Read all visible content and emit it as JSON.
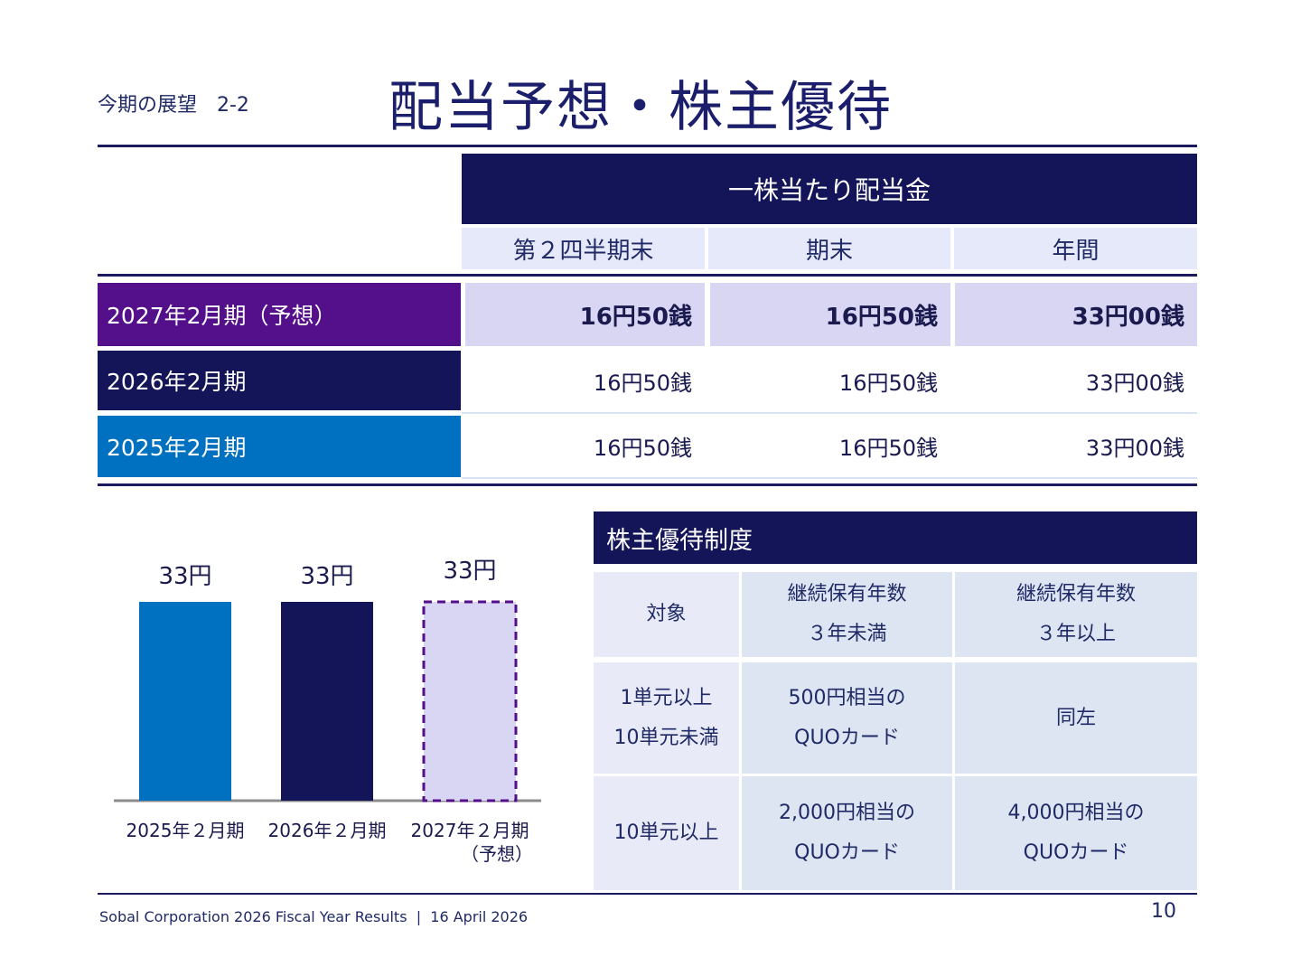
{
  "header": {
    "section": "今期の展望　2-2",
    "title": "配当予想・株主優待"
  },
  "dividend_table": {
    "header": "一株当たり配当金",
    "columns": [
      "第２四半期末",
      "期末",
      "年間"
    ],
    "rows": [
      {
        "label": "2027年2月期（予想）",
        "values": [
          "16円50銭",
          "16円50銭",
          "33円00銭"
        ],
        "color": "#540f8a"
      },
      {
        "label": "2026年2月期",
        "values": [
          "16円50銭",
          "16円50銭",
          "33円00銭"
        ],
        "color": "#141459"
      },
      {
        "label": "2025年2月期",
        "values": [
          "16円50銭",
          "16円50銭",
          "33円00銭"
        ],
        "color": "#0070c0"
      }
    ]
  },
  "chart_data": {
    "type": "bar",
    "categories": [
      "2025年２月期",
      "2026年２月期",
      "2027年２月期\n（予想）"
    ],
    "values": [
      33,
      33,
      33
    ],
    "data_labels": [
      "33円",
      "33円",
      "33円"
    ],
    "colors": [
      "#0070c0",
      "#141459",
      "#d9d6f3"
    ],
    "forecast_index": 2,
    "ylim": [
      0,
      33
    ],
    "grid": false
  },
  "benefit_table": {
    "title": "株主優待制度",
    "header": [
      "対象",
      "継続保有年数\n３年未満",
      "継続保有年数\n３年以上"
    ],
    "rows": [
      [
        "1単元以上\n10単元未満",
        "500円相当の\nQUOカード",
        "同左"
      ],
      [
        "10単元以上",
        "2,000円相当の\nQUOカード",
        "4,000円相当の\nQUOカード"
      ]
    ]
  },
  "footer": {
    "text": "Sobal Corporation 2026 Fiscal Year Results  |  16 April 2026",
    "page": "10"
  }
}
